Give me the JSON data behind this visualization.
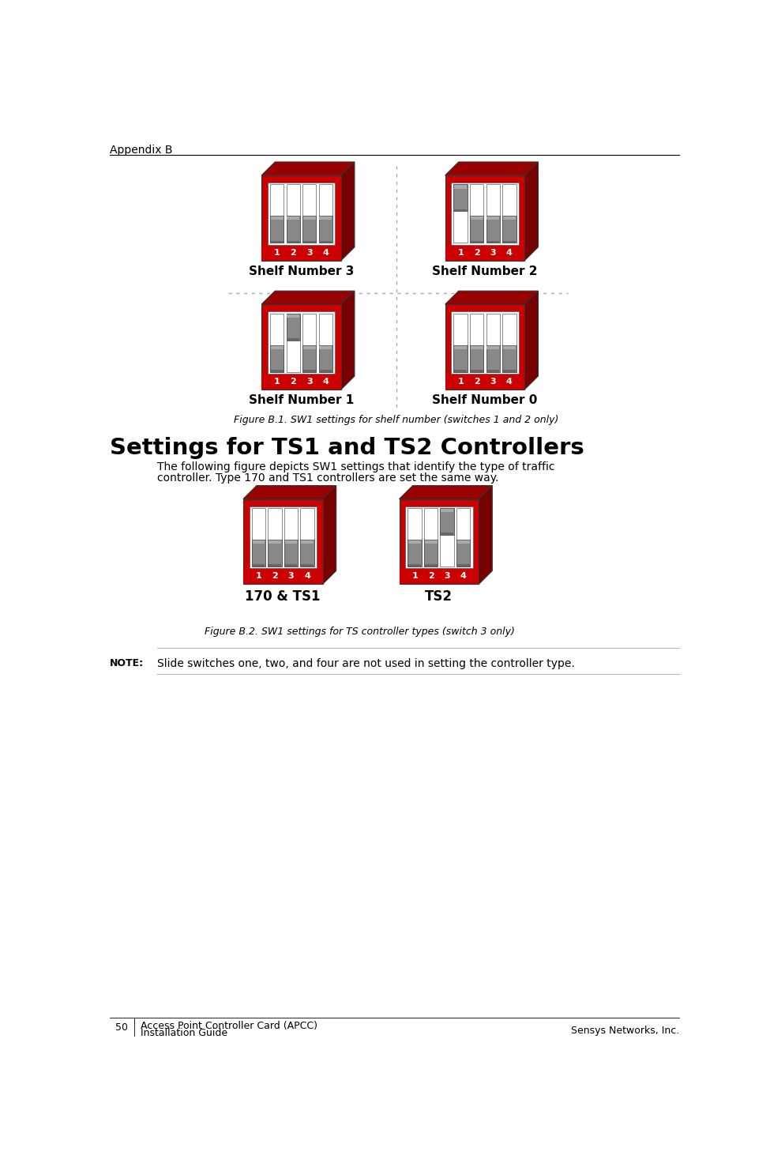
{
  "page_header": "Appendix B",
  "figure1_caption": "Figure B.1. SW1 settings for shelf number (switches 1 and 2 only)",
  "section_heading": "Settings for TS1 and TS2 Controllers",
  "section_body_line1": "The following figure depicts SW1 settings that identify the type of traffic",
  "section_body_line2": "controller. Type 170 and TS1 controllers are set the same way.",
  "figure2_caption": "Figure B.2. SW1 settings for TS controller types (switch 3 only)",
  "note_label": "NOTE:",
  "note_text": "Slide switches one, two, and four are not used in setting the controller type.",
  "footer_page": "50",
  "footer_left1": "Access Point Controller Card (APCC)",
  "footer_left2": "Installation Guide",
  "footer_right": "Sensys Networks, Inc.",
  "switches_row1": [
    {
      "label": "Shelf Number 3",
      "switch_down": [
        true,
        true,
        true,
        true
      ]
    },
    {
      "label": "Shelf Number 2",
      "switch_down": [
        false,
        true,
        true,
        true
      ]
    }
  ],
  "switches_row2": [
    {
      "label": "Shelf Number 1",
      "switch_down": [
        true,
        false,
        true,
        true
      ]
    },
    {
      "label": "Shelf Number 0",
      "switch_down": [
        true,
        true,
        true,
        true
      ]
    }
  ],
  "switches_fig2": [
    {
      "label": "170 & TS1",
      "switch_down": [
        true,
        true,
        true,
        true
      ]
    },
    {
      "label": "TS2",
      "switch_down": [
        true,
        true,
        false,
        true
      ]
    }
  ],
  "bg_color": "#ffffff",
  "red_color": "#cc0000",
  "dark_red": "#990000",
  "darker_red": "#770000",
  "gray_lever": "#888888",
  "gray_lever_dark": "#666666",
  "switch_numbers": [
    "1",
    "2",
    "3",
    "4"
  ]
}
